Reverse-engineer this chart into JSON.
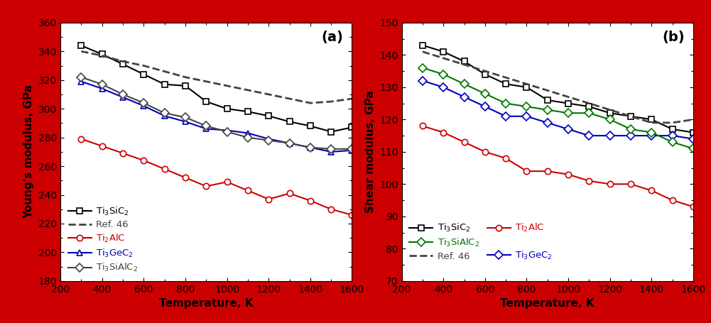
{
  "temp": [
    300,
    400,
    500,
    600,
    700,
    800,
    900,
    1000,
    1100,
    1200,
    1300,
    1400,
    1500,
    1600
  ],
  "young_Ti3SiC2": [
    344,
    338,
    331,
    324,
    317,
    316,
    305,
    300,
    298,
    295,
    291,
    288,
    284,
    287
  ],
  "young_ref46": [
    340,
    337,
    333,
    330,
    326,
    322,
    319,
    316,
    313,
    310,
    307,
    304,
    305,
    307
  ],
  "young_Ti2AlC": [
    279,
    274,
    269,
    264,
    258,
    252,
    246,
    249,
    243,
    237,
    241,
    236,
    230,
    226
  ],
  "young_Ti3GeC2": [
    319,
    314,
    308,
    302,
    295,
    291,
    286,
    285,
    283,
    279,
    276,
    273,
    270,
    271
  ],
  "young_Ti3SiAlC2": [
    322,
    317,
    310,
    304,
    297,
    294,
    288,
    284,
    280,
    278,
    276,
    273,
    272,
    272
  ],
  "shear_Ti3SiC2": [
    143,
    141,
    138,
    134,
    131,
    130,
    126,
    125,
    124,
    122,
    121,
    120,
    117,
    116
  ],
  "shear_ref46": [
    141,
    139,
    137,
    135,
    133,
    131,
    129,
    127,
    125,
    123,
    121,
    119,
    119,
    120
  ],
  "shear_Ti2AlC": [
    118,
    116,
    113,
    110,
    108,
    104,
    104,
    103,
    101,
    100,
    100,
    98,
    95,
    93
  ],
  "shear_Ti3GeC2": [
    132,
    130,
    127,
    124,
    121,
    121,
    119,
    117,
    115,
    115,
    115,
    115,
    115,
    114
  ],
  "shear_Ti3SiAlC2": [
    136,
    134,
    131,
    128,
    125,
    124,
    123,
    122,
    122,
    120,
    117,
    116,
    113,
    111
  ],
  "color_black": "#000000",
  "color_red": "#cc0000",
  "color_blue": "#0000bb",
  "color_green": "#007700",
  "color_darkgray": "#444444",
  "ylabel_a": "Young's modulus, GPa",
  "ylabel_b": "Shear modulus, GPa",
  "xlabel": "Temperature, K",
  "ylim_a": [
    180,
    360
  ],
  "ylim_b": [
    70,
    150
  ],
  "yticks_a": [
    180,
    200,
    220,
    240,
    260,
    280,
    300,
    320,
    340,
    360
  ],
  "yticks_b": [
    70,
    80,
    90,
    100,
    110,
    120,
    130,
    140,
    150
  ],
  "xlim": [
    200,
    1600
  ],
  "xticks": [
    200,
    400,
    600,
    800,
    1000,
    1200,
    1400,
    1600
  ],
  "label_Ti3SiC2": "Ti$_3$SiC$_2$",
  "label_ref46": "Ref. 46",
  "label_Ti2AlC": "Ti$_2$AlC",
  "label_Ti3GeC2": "Ti$_3$GeC$_2$",
  "label_Ti3SiAlC2": "Ti$_3$SiAlC$_2$",
  "panel_a_label": "(a)",
  "panel_b_label": "(b)",
  "border_color": "#cc0000",
  "bg_color": "#ffffff"
}
